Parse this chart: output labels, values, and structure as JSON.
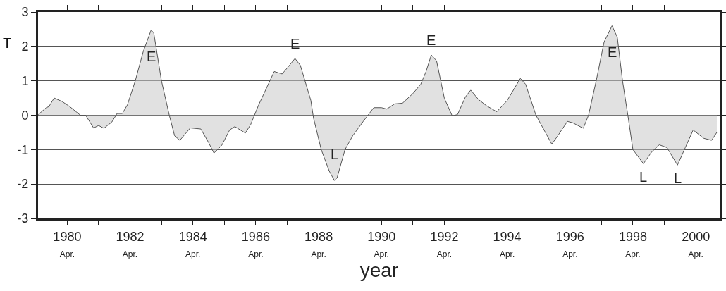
{
  "chart_data": {
    "type": "area",
    "xlabel": "year",
    "ylabel": "T",
    "x": [
      "1979-05",
      "1979-08",
      "1979-09",
      "1979-11",
      "1980-02",
      "1980-05",
      "1980-09",
      "1980-11",
      "1981-02",
      "1981-04",
      "1981-06",
      "1981-09",
      "1981-11",
      "1982-01",
      "1982-03",
      "1982-06",
      "1982-09",
      "1982-12",
      "1983-01",
      "1983-04",
      "1983-07",
      "1983-09",
      "1983-11",
      "1984-03",
      "1984-07",
      "1984-10",
      "1984-12",
      "1985-03",
      "1985-06",
      "1985-08",
      "1985-12",
      "1986-02",
      "1986-05",
      "1986-11",
      "1987-02",
      "1987-04",
      "1987-07",
      "1987-09",
      "1988-01",
      "1988-02",
      "1988-05",
      "1988-08",
      "1988-10",
      "1988-11",
      "1989-02",
      "1989-05",
      "1989-09",
      "1990-01",
      "1990-04",
      "1990-06",
      "1990-09",
      "1990-12",
      "1991-04",
      "1991-07",
      "1991-09",
      "1991-11",
      "1992-01",
      "1992-04",
      "1992-07",
      "1992-09",
      "1992-12",
      "1993-02",
      "1993-05",
      "1993-08",
      "1993-12",
      "1994-04",
      "1994-09",
      "1994-11",
      "1995-03",
      "1995-09",
      "1995-11",
      "1996-03",
      "1996-05",
      "1996-09",
      "1996-11",
      "1997-02",
      "1997-05",
      "1997-08",
      "1997-10",
      "1997-12",
      "1998-02",
      "1998-04",
      "1998-08",
      "1998-11",
      "1999-02",
      "1999-05",
      "1999-09",
      "1999-12",
      "2000-03",
      "2000-07",
      "2000-10",
      "2000-12"
    ],
    "series": [
      {
        "color": "#555555",
        "values": [
          0.02,
          0.22,
          0.25,
          0.5,
          0.4,
          0.25,
          0.0,
          0.0,
          -0.37,
          -0.3,
          -0.38,
          -0.2,
          0.05,
          0.05,
          0.3,
          1.0,
          1.85,
          2.47,
          2.4,
          1.0,
          0.0,
          -0.6,
          -0.73,
          -0.37,
          -0.4,
          -0.8,
          -1.1,
          -0.88,
          -0.43,
          -0.33,
          -0.52,
          -0.27,
          0.28,
          1.27,
          1.2,
          1.37,
          1.65,
          1.45,
          0.43,
          -0.08,
          -1.0,
          -1.62,
          -1.9,
          -1.82,
          -1.0,
          -0.6,
          -0.18,
          0.22,
          0.22,
          0.18,
          0.33,
          0.35,
          0.63,
          0.9,
          1.27,
          1.75,
          1.58,
          0.49,
          -0.02,
          0.02,
          0.53,
          0.73,
          0.46,
          0.28,
          0.1,
          0.43,
          1.07,
          0.9,
          0.0,
          -0.84,
          -0.63,
          -0.18,
          -0.22,
          -0.38,
          0.0,
          1.03,
          2.13,
          2.6,
          2.27,
          1.0,
          0.0,
          -1.0,
          -1.41,
          -1.08,
          -0.86,
          -0.94,
          -1.45,
          -0.94,
          -0.43,
          -0.67,
          -0.73,
          -0.5
        ]
      }
    ],
    "xlim": [
      "1979-04-28",
      "2001-01-11"
    ],
    "xticks": [
      {
        "value": "1980-04",
        "label": "1980\nApr."
      },
      {
        "value": "1981-04",
        "label": null
      },
      {
        "value": "1982-04",
        "label": "1982\nApr."
      },
      {
        "value": "1983-04",
        "label": null
      },
      {
        "value": "1984-04",
        "label": "1984\nApr."
      },
      {
        "value": "1985-04",
        "label": null
      },
      {
        "value": "1986-04",
        "label": "1986\nApr."
      },
      {
        "value": "1987-04",
        "label": null
      },
      {
        "value": "1988-04",
        "label": "1988\nApr."
      },
      {
        "value": "1989-04",
        "label": null
      },
      {
        "value": "1990-04",
        "label": "1990\nApr."
      },
      {
        "value": "1991-04",
        "label": null
      },
      {
        "value": "1992-04",
        "label": "1992\nApr."
      },
      {
        "value": "1993-04",
        "label": null
      },
      {
        "value": "1994-04",
        "label": "1994\nApr."
      },
      {
        "value": "1995-04",
        "label": null
      },
      {
        "value": "1996-04",
        "label": "1996\nApr."
      },
      {
        "value": "1997-04",
        "label": null
      },
      {
        "value": "1998-04",
        "label": "1998\nApr."
      },
      {
        "value": "1999-04",
        "label": null
      },
      {
        "value": "2000-04",
        "label": "2000\nApr."
      }
    ],
    "ylim": [
      -3,
      3
    ],
    "yticks": [
      -3,
      -2,
      -1,
      0,
      1,
      2,
      3
    ],
    "grid": "y",
    "annotations": [
      {
        "text": "E",
        "x": "1982-12",
        "y": 2.47
      },
      {
        "text": "E",
        "x": "1987-07",
        "y": 1.65
      },
      {
        "text": "L",
        "x": "1988-10",
        "y": -1.9
      },
      {
        "text": "E",
        "x": "1991-11",
        "y": 1.75
      },
      {
        "text": "E",
        "x": "1997-08",
        "y": 2.6
      },
      {
        "text": "L",
        "x": "1998-08",
        "y": -1.41
      },
      {
        "text": "L",
        "x": "1999-09",
        "y": -1.45
      }
    ]
  }
}
